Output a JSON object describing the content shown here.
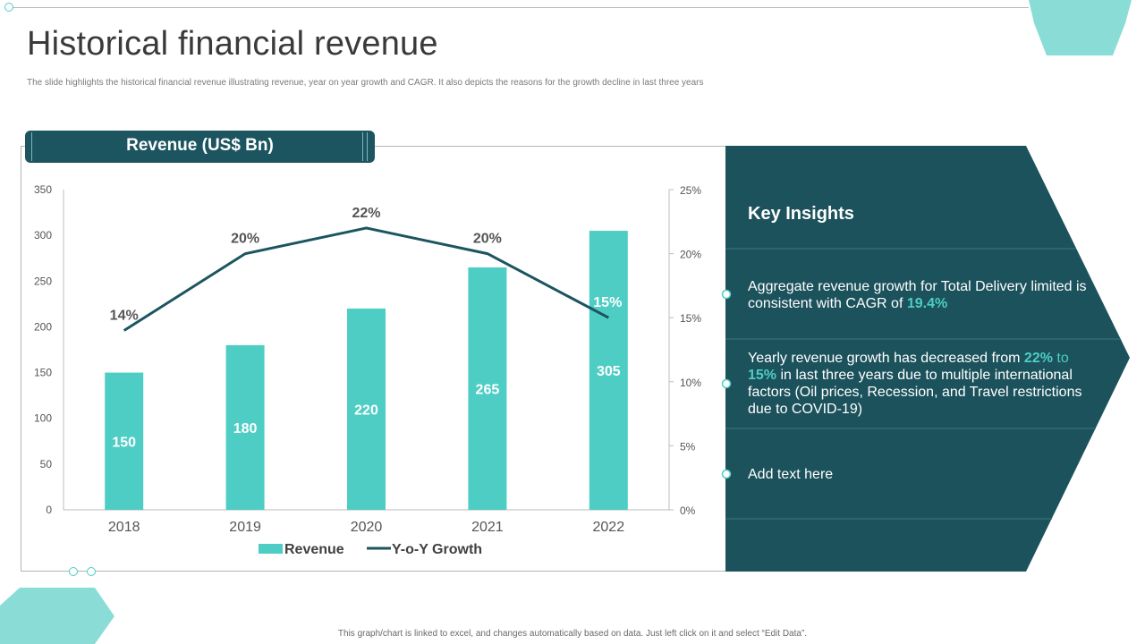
{
  "page": {
    "title": "Historical financial revenue",
    "subtitle": "The slide highlights the historical financial revenue illustrating revenue, year on year growth and CAGR. It also depicts the reasons for the growth decline in last three years",
    "footer": "This graph/chart is linked to excel, and changes automatically based on data. Just left click on it and select “Edit Data”."
  },
  "colors": {
    "accent": "#4ecdc4",
    "dark": "#1c5560",
    "panel": "#1c525c"
  },
  "chart_header": "Revenue (US$ Bn)",
  "chart_data": {
    "type": "bar",
    "title": "Revenue (US$ Bn)",
    "categories": [
      "2018",
      "2019",
      "2020",
      "2021",
      "2022"
    ],
    "series": [
      {
        "name": "Revenue",
        "type": "bar",
        "axis": "left",
        "values": [
          150,
          180,
          220,
          265,
          305
        ],
        "labels": [
          "150",
          "180",
          "220",
          "265",
          "305"
        ]
      },
      {
        "name": "Y-o-Y Growth",
        "type": "line",
        "axis": "right",
        "values": [
          14,
          20,
          22,
          20,
          15
        ],
        "labels": [
          "14%",
          "20%",
          "22%",
          "20%",
          "15%"
        ]
      }
    ],
    "ylim_left": [
      0,
      350
    ],
    "yticks_left": [
      "0",
      "50",
      "100",
      "150",
      "200",
      "250",
      "300",
      "350"
    ],
    "ylim_right": [
      0,
      25
    ],
    "yticks_right": [
      "0%",
      "5%",
      "10%",
      "15%",
      "20%",
      "25%"
    ],
    "legend": [
      "Revenue",
      "Y-o-Y Growth"
    ],
    "legend_position": "bottom",
    "grid": false
  },
  "insights": {
    "title": "Key Insights",
    "items": [
      {
        "parts": [
          {
            "text": "Aggregate revenue growth for Total Delivery limited is consistent with CAGR of ",
            "style": "plain"
          },
          {
            "text": "19.4%",
            "style": "bold-accent"
          }
        ]
      },
      {
        "parts": [
          {
            "text": "Yearly revenue growth has decreased from ",
            "style": "plain"
          },
          {
            "text": "22%",
            "style": "bold-accent"
          },
          {
            "text": " to ",
            "style": "accent"
          },
          {
            "text": "15%",
            "style": "bold-accent"
          },
          {
            "text": " in last three years due to multiple international factors (Oil prices, Recession, and Travel restrictions due to COVID-19)",
            "style": "plain"
          }
        ]
      },
      {
        "parts": [
          {
            "text": "Add text here",
            "style": "plain"
          }
        ]
      }
    ]
  }
}
